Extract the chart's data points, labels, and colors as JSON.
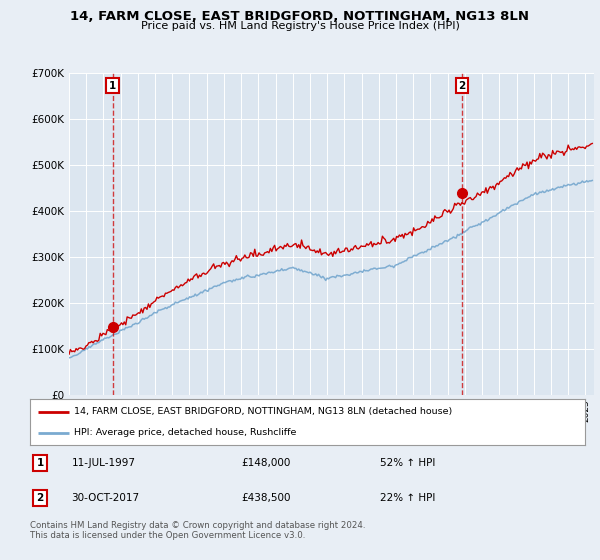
{
  "title": "14, FARM CLOSE, EAST BRIDGFORD, NOTTINGHAM, NG13 8LN",
  "subtitle": "Price paid vs. HM Land Registry's House Price Index (HPI)",
  "background_color": "#e8eef5",
  "plot_bg_color": "#dce6f0",
  "sale1_date": "11-JUL-1997",
  "sale1_price": 148000,
  "sale1_label": "1",
  "sale1_year": 1997.53,
  "sale2_date": "30-OCT-2017",
  "sale2_price": 438500,
  "sale2_label": "2",
  "sale2_year": 2017.83,
  "legend_line1": "14, FARM CLOSE, EAST BRIDGFORD, NOTTINGHAM, NG13 8LN (detached house)",
  "legend_line2": "HPI: Average price, detached house, Rushcliffe",
  "footer": "Contains HM Land Registry data © Crown copyright and database right 2024.\nThis data is licensed under the Open Government Licence v3.0.",
  "red_color": "#cc0000",
  "blue_color": "#7aaad0",
  "ylim": [
    0,
    700000
  ],
  "xlim_start": 1995.0,
  "xlim_end": 2025.5
}
